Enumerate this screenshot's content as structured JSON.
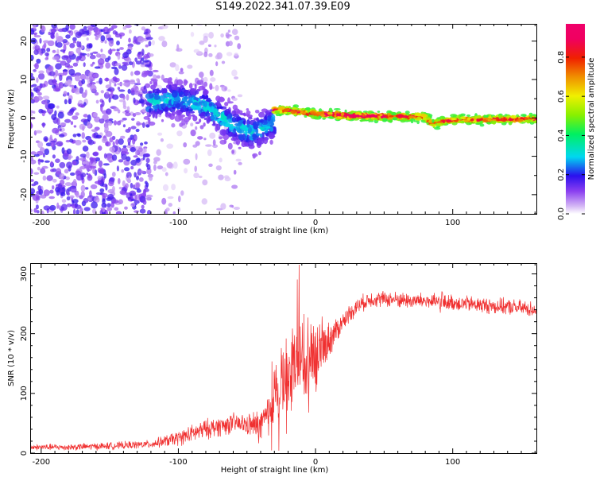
{
  "title": "S149.2022.341.07.39.E09",
  "chart_data": [
    {
      "type": "heatmap",
      "name": "spectrogram",
      "xlabel": "Height of straight line (km)",
      "ylabel": "Frequency (Hz)",
      "xlim": [
        -208,
        161
      ],
      "ylim": [
        -25,
        24.5
      ],
      "x_ticks": [
        -200,
        -100,
        0,
        100
      ],
      "y_ticks": [
        -20,
        -10,
        0,
        10,
        20
      ],
      "colorbar": {
        "label": "Normalized spectral amplitude",
        "range": [
          0,
          0.97
        ],
        "ticks": [
          0.0,
          0.2,
          0.4,
          0.6,
          0.8
        ]
      },
      "signal_regions": [
        {
          "name": "scattered noise",
          "x_range": [
            -208,
            -120
          ],
          "freq_range": [
            -25,
            24.5
          ],
          "amplitude": [
            0.05,
            0.2
          ]
        },
        {
          "name": "sparse noise",
          "x_range": [
            -120,
            -55
          ],
          "freq_range": [
            -25,
            24.5
          ],
          "amplitude": [
            0.02,
            0.1
          ]
        },
        {
          "name": "emerging carrier",
          "x_range": [
            -122,
            -30
          ],
          "freq_center": [
            [
              -122,
              4
            ],
            [
              -100,
              5
            ],
            [
              -80,
              3
            ],
            [
              -60,
              -2
            ],
            [
              -45,
              -4
            ],
            [
              -30,
              -1
            ]
          ],
          "freq_width": 6,
          "amplitude": [
            0.1,
            0.35
          ]
        },
        {
          "name": "carrier",
          "x_range": [
            -30,
            161
          ],
          "freq_center": [
            [
              -30,
              2
            ],
            [
              -20,
              2
            ],
            [
              0,
              1
            ],
            [
              30,
              0.5
            ],
            [
              80,
              0.3
            ],
            [
              85,
              -1.5
            ],
            [
              100,
              -0.5
            ],
            [
              161,
              -0.3
            ]
          ],
          "freq_width": 3,
          "amplitude": [
            0.45,
            0.97
          ]
        }
      ]
    },
    {
      "type": "line",
      "name": "snr",
      "xlabel": "Height of straight line (km)",
      "ylabel": "SNR (10 * v/v)",
      "xlim": [
        -208,
        161
      ],
      "ylim": [
        0,
        318
      ],
      "x_ticks": [
        -200,
        -100,
        0,
        100
      ],
      "y_ticks": [
        0,
        100,
        200,
        300
      ],
      "series": [
        {
          "name": "SNR",
          "color": "#f03030",
          "x": [
            -208,
            -180,
            -150,
            -120,
            -100,
            -80,
            -60,
            -40,
            -35,
            -30,
            -25,
            -20,
            -15,
            -10,
            -5,
            0,
            5,
            10,
            15,
            20,
            25,
            30,
            35,
            40,
            50,
            60,
            70,
            80,
            90,
            91,
            92,
            93,
            95,
            100,
            110,
            120,
            130,
            140,
            150,
            161
          ],
          "y": [
            10,
            10,
            12,
            15,
            25,
            40,
            50,
            45,
            60,
            90,
            120,
            140,
            150,
            160,
            165,
            160,
            175,
            190,
            205,
            220,
            235,
            245,
            252,
            258,
            258,
            257,
            255,
            255,
            252,
            240,
            270,
            250,
            252,
            252,
            250,
            248,
            246,
            245,
            243,
            240
          ],
          "noise_band": [
            [
              -208,
              6
            ],
            [
              -120,
              8
            ],
            [
              -100,
              15
            ],
            [
              -80,
              20
            ],
            [
              -50,
              20
            ],
            [
              -35,
              45
            ],
            [
              -20,
              80
            ],
            [
              -5,
              75
            ],
            [
              5,
              45
            ],
            [
              20,
              18
            ],
            [
              40,
              16
            ],
            [
              161,
              16
            ]
          ]
        }
      ]
    }
  ]
}
